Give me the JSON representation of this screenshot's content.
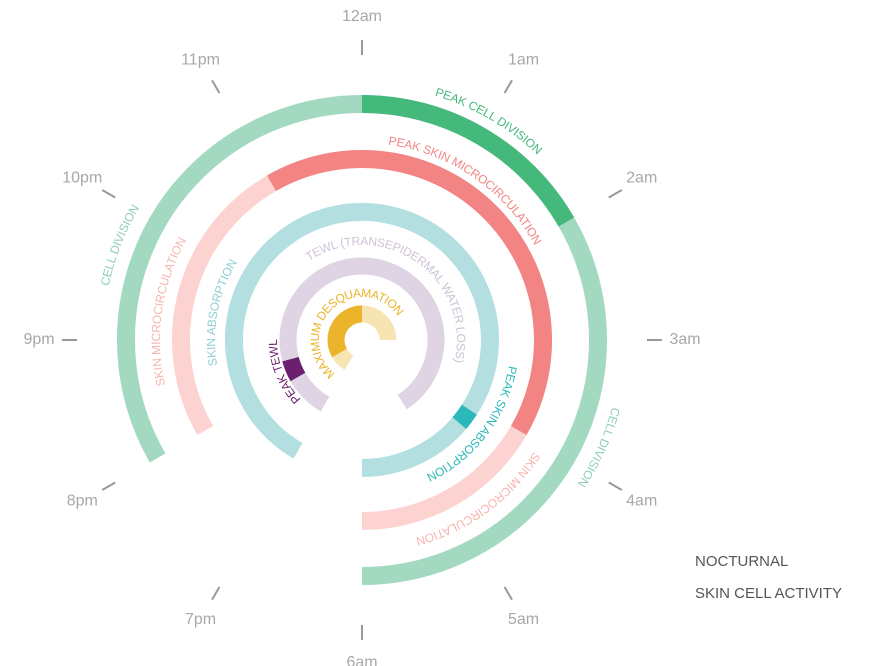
{
  "chart_data": {
    "type": "radial",
    "title": [
      "NOCTURNAL",
      "SKIN CELL ACTIVITY"
    ],
    "hour_ticks": [
      {
        "value": 0,
        "label": "12am"
      },
      {
        "value": 1,
        "label": "1am"
      },
      {
        "value": 2,
        "label": "2am"
      },
      {
        "value": 3,
        "label": "3am"
      },
      {
        "value": 4,
        "label": "4am"
      },
      {
        "value": 5,
        "label": "5am"
      },
      {
        "value": 6,
        "label": "6am"
      },
      {
        "value": -5,
        "label": "7pm"
      },
      {
        "value": -4,
        "label": "8pm"
      },
      {
        "value": -3,
        "label": "9pm"
      },
      {
        "value": -2,
        "label": "10pm"
      },
      {
        "value": -1,
        "label": "11pm"
      }
    ],
    "rings": [
      {
        "name": "CELL DIVISION",
        "color": "#a3d9c1",
        "start": -4,
        "end": 6,
        "peak": {
          "name": "PEAK CELL DIVISION",
          "color": "#45b97c",
          "start": 0,
          "end": 2
        }
      },
      {
        "name": "SKIN MICROCIRCULATION",
        "color": "#fcd3d0",
        "start": -4,
        "end": 6,
        "peak": {
          "name": "PEAK SKIN MICROCIRCULATION",
          "color": "#f28583",
          "start": -1,
          "end": 4
        }
      },
      {
        "name": "SKIN ABSORPTION",
        "color": "#b3dfe0",
        "start": -5,
        "end": 6,
        "peak": {
          "name": "PEAK SKIN ABSORPTION",
          "color": "#2cb8bb",
          "start": 4.1,
          "end": 4.35
        }
      },
      {
        "name": "TEWL (TRANSEPIDERMAL WATER LOSS)",
        "color": "#ded4e3",
        "start": -5,
        "end": 4.9,
        "peak": {
          "name": "PEAK TEWL",
          "color": "#6b1f6e",
          "start": -4,
          "end": -3.5
        }
      },
      {
        "name": "MAXIMUM DESQUAMATION",
        "color": "#f7e4b3",
        "start": -5,
        "end": 3,
        "peak": {
          "name": "MAXIMUM DESQUAMATION",
          "color": "#ebb42a",
          "start": -4,
          "end": 0
        }
      }
    ]
  }
}
